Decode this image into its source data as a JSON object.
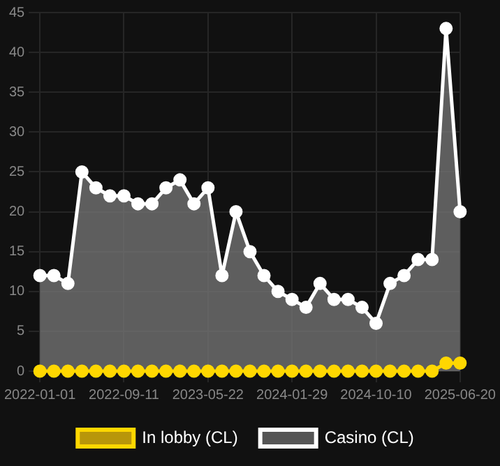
{
  "chart_data": {
    "type": "line",
    "categories": [
      "2022-01-01",
      null,
      null,
      null,
      null,
      null,
      "2022-09-11",
      null,
      null,
      null,
      null,
      null,
      "2023-05-22",
      null,
      null,
      null,
      null,
      null,
      "2024-01-29",
      null,
      null,
      null,
      null,
      null,
      "2024-10-10",
      null,
      null,
      null,
      null,
      null,
      "2025-06-20"
    ],
    "series": [
      {
        "name": "In lobby (CL)",
        "color": "#ffd700",
        "values": [
          0,
          0,
          0,
          0,
          0,
          0,
          0,
          0,
          0,
          0,
          0,
          0,
          0,
          0,
          0,
          0,
          0,
          0,
          0,
          0,
          0,
          0,
          0,
          0,
          0,
          0,
          0,
          0,
          0,
          1,
          1
        ]
      },
      {
        "name": "Casino (CL)",
        "type": "area",
        "color": "#ffffff",
        "values": [
          12,
          12,
          11,
          25,
          23,
          22,
          22,
          21,
          21,
          23,
          24,
          21,
          23,
          12,
          20,
          15,
          12,
          10,
          9,
          8,
          11,
          9,
          9,
          8,
          6,
          11,
          12,
          14,
          14,
          43,
          20
        ]
      }
    ],
    "ylim": [
      0,
      45
    ],
    "yticks": [
      0,
      5,
      10,
      15,
      20,
      25,
      30,
      35,
      40,
      45
    ],
    "grid": true,
    "legend": "bottom",
    "marker": "circle",
    "line_style": "solid"
  }
}
